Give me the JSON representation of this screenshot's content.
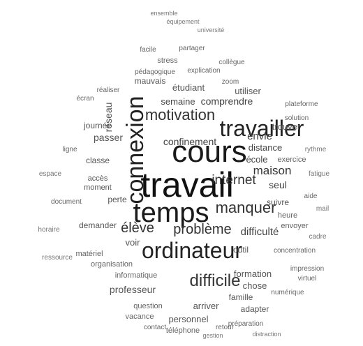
{
  "words": [
    "travail",
    "cours",
    "temps",
    "travailler",
    "ordinateur",
    "connexion",
    "motivation",
    "manquer",
    "difficile",
    "problème",
    "élève",
    "internet",
    "maison",
    "seul",
    "difficulté",
    "comprendre",
    "semaine",
    "confinement",
    "envie",
    "distance",
    "école",
    "réseau",
    "passer",
    "classe",
    "journée",
    "demander",
    "voir",
    "perte",
    "moment",
    "accès",
    "outil",
    "chose",
    "arriver",
    "famille",
    "trouver",
    "mauvais",
    "étudiant",
    "stress",
    "utiliser",
    "adapter",
    "suivre",
    "organisation",
    "matériel",
    "informatique",
    "professeur",
    "formation",
    "personnel",
    "concentration",
    "exercice",
    "ensemble",
    "équipement",
    "université",
    "partager",
    "facile",
    "collègue",
    "explication",
    "pédagogique",
    "réaliser",
    "écran",
    "document",
    "solution",
    "aide",
    "question",
    "retour",
    "ligne",
    "virtuel",
    "impression",
    "plateforme",
    "vacance",
    "téléphone",
    "gestion",
    "contact",
    "numérique",
    "préparation",
    "horaire",
    "rythme",
    "heure",
    "envoyer",
    "fatigue",
    "ressource",
    "espace",
    "distraction",
    "mail",
    "zoom",
    "cadre"
  ]
}
